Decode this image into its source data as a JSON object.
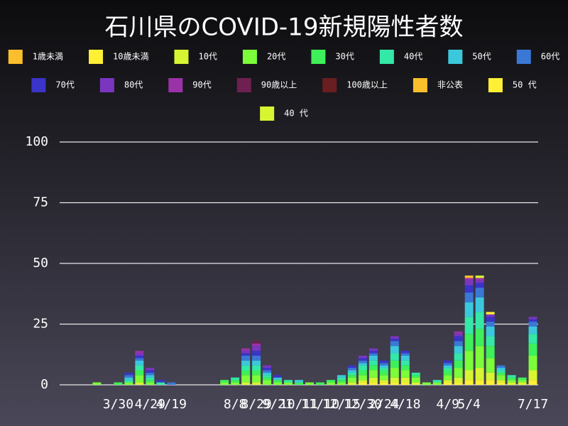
{
  "chart_data": {
    "type": "stacked_bar",
    "title": "石川県のCOVID-19新規陽性者数",
    "categories": [
      null,
      null,
      null,
      null,
      null,
      "3/30",
      null,
      null,
      "4/29",
      null,
      "4/19",
      null,
      null,
      null,
      null,
      null,
      "8/8",
      null,
      "8/29",
      null,
      "9/21",
      null,
      "10/11",
      null,
      "11/10",
      null,
      "12/15",
      null,
      "12/30",
      null,
      "2/24",
      null,
      "4/18",
      null,
      null,
      null,
      "4/9",
      null,
      "5/4",
      null,
      null,
      null,
      null,
      null,
      "7/17"
    ],
    "ylim": [
      0,
      100
    ],
    "yticks": [
      0,
      25,
      50,
      75,
      100
    ],
    "grid": true,
    "series": [
      {
        "name": "1歳未満",
        "color": "#fbbf2d",
        "values": [
          0,
          0,
          0,
          0,
          0,
          0,
          0,
          0,
          0,
          0,
          0,
          0,
          0,
          0,
          0,
          0,
          0,
          0,
          0,
          0,
          0,
          0,
          0,
          0,
          0,
          0,
          0,
          0,
          0,
          0,
          0,
          0,
          0,
          0,
          0,
          0,
          0,
          0,
          0,
          0,
          0,
          0,
          0,
          0,
          0
        ]
      },
      {
        "name": "10歳未満",
        "color": "#fff036",
        "values": [
          0,
          0,
          0,
          0,
          0,
          0,
          0,
          0,
          0,
          0,
          0,
          0,
          0,
          0,
          0,
          0,
          0,
          0,
          0,
          0,
          0,
          0,
          0,
          0,
          0,
          0,
          0,
          0,
          1,
          1,
          1,
          1,
          1,
          0,
          0,
          0,
          1,
          1,
          2,
          2,
          2,
          1,
          0,
          0,
          2
        ]
      },
      {
        "name": "10代",
        "color": "#d8f531",
        "values": [
          0,
          0,
          0,
          0,
          0,
          0,
          0,
          1,
          0,
          0,
          0,
          0,
          0,
          0,
          0,
          0,
          0,
          1,
          1,
          0,
          0,
          0,
          0,
          0,
          0,
          0,
          0,
          1,
          1,
          2,
          1,
          2,
          2,
          1,
          0,
          0,
          1,
          2,
          4,
          5,
          3,
          1,
          1,
          1,
          4
        ]
      },
      {
        "name": "20代",
        "color": "#7dfc3a",
        "values": [
          0,
          0,
          0,
          1,
          0,
          0,
          1,
          3,
          1,
          0,
          0,
          0,
          0,
          0,
          0,
          1,
          1,
          3,
          3,
          2,
          1,
          1,
          0,
          1,
          0,
          1,
          1,
          2,
          2,
          3,
          2,
          4,
          3,
          2,
          1,
          1,
          2,
          4,
          8,
          9,
          6,
          2,
          1,
          1,
          6
        ]
      },
      {
        "name": "30代",
        "color": "#3ef05a",
        "values": [
          0,
          0,
          0,
          0,
          0,
          1,
          0,
          2,
          1,
          0,
          0,
          0,
          0,
          0,
          0,
          1,
          1,
          2,
          2,
          1,
          1,
          0,
          1,
          0,
          1,
          1,
          1,
          1,
          2,
          2,
          2,
          3,
          2,
          1,
          0,
          0,
          2,
          3,
          7,
          7,
          5,
          1,
          1,
          1,
          5
        ]
      },
      {
        "name": "40代",
        "color": "#34e8a8",
        "values": [
          0,
          0,
          0,
          0,
          0,
          0,
          1,
          2,
          1,
          1,
          0,
          0,
          0,
          0,
          0,
          0,
          1,
          2,
          2,
          1,
          0,
          1,
          0,
          0,
          0,
          0,
          1,
          1,
          2,
          2,
          1,
          3,
          2,
          1,
          0,
          1,
          1,
          3,
          7,
          7,
          4,
          1,
          1,
          0,
          4
        ]
      },
      {
        "name": "50代",
        "color": "#3cc8dc",
        "values": [
          0,
          0,
          0,
          0,
          0,
          0,
          1,
          2,
          1,
          0,
          0,
          0,
          0,
          0,
          0,
          0,
          0,
          2,
          2,
          1,
          1,
          0,
          1,
          0,
          0,
          0,
          1,
          1,
          1,
          2,
          1,
          3,
          2,
          0,
          0,
          0,
          1,
          3,
          6,
          6,
          4,
          1,
          0,
          0,
          3
        ]
      },
      {
        "name": "60代",
        "color": "#3a78d6",
        "values": [
          0,
          0,
          0,
          0,
          0,
          0,
          1,
          1,
          1,
          0,
          1,
          0,
          0,
          0,
          0,
          0,
          0,
          2,
          2,
          1,
          0,
          0,
          0,
          0,
          0,
          0,
          0,
          1,
          1,
          1,
          1,
          2,
          1,
          0,
          0,
          0,
          1,
          2,
          4,
          4,
          2,
          1,
          0,
          0,
          2
        ]
      },
      {
        "name": "70代",
        "color": "#3a34c8",
        "values": [
          0,
          0,
          0,
          0,
          0,
          0,
          1,
          1,
          1,
          1,
          0,
          0,
          0,
          0,
          0,
          0,
          0,
          1,
          2,
          1,
          1,
          0,
          0,
          0,
          0,
          0,
          0,
          1,
          1,
          1,
          1,
          1,
          1,
          0,
          0,
          0,
          1,
          2,
          3,
          2,
          2,
          0,
          0,
          0,
          1
        ]
      },
      {
        "name": "80代",
        "color": "#7a36c0",
        "values": [
          0,
          0,
          0,
          0,
          0,
          0,
          0,
          1,
          1,
          0,
          0,
          0,
          0,
          0,
          0,
          0,
          0,
          1,
          2,
          1,
          0,
          0,
          0,
          0,
          0,
          0,
          0,
          0,
          1,
          1,
          0,
          1,
          0,
          0,
          0,
          0,
          0,
          1,
          2,
          1,
          1,
          0,
          0,
          0,
          1
        ]
      },
      {
        "name": "90代",
        "color": "#9a32a8",
        "values": [
          0,
          0,
          0,
          0,
          0,
          0,
          0,
          1,
          0,
          0,
          0,
          0,
          0,
          0,
          0,
          0,
          0,
          1,
          1,
          0,
          0,
          0,
          0,
          0,
          0,
          0,
          0,
          0,
          0,
          0,
          0,
          0,
          0,
          0,
          0,
          0,
          0,
          1,
          1,
          1,
          0,
          0,
          0,
          0,
          0
        ]
      },
      {
        "name": "90歳以上",
        "color": "#6e2050",
        "values": [
          0,
          0,
          0,
          0,
          0,
          0,
          0,
          0,
          0,
          0,
          0,
          0,
          0,
          0,
          0,
          0,
          0,
          0,
          1,
          0,
          0,
          0,
          0,
          0,
          0,
          0,
          0,
          0,
          0,
          0,
          0,
          0,
          0,
          0,
          0,
          0,
          0,
          0,
          0,
          0,
          0,
          0,
          0,
          0,
          0
        ]
      },
      {
        "name": "100歳以上",
        "color": "#6a1e20",
        "values": [
          0,
          0,
          0,
          0,
          0,
          0,
          0,
          0,
          0,
          0,
          0,
          0,
          0,
          0,
          0,
          0,
          0,
          0,
          0,
          0,
          0,
          0,
          0,
          0,
          0,
          0,
          0,
          0,
          0,
          0,
          0,
          0,
          0,
          0,
          0,
          0,
          0,
          0,
          0,
          0,
          0,
          0,
          0,
          0,
          0
        ]
      },
      {
        "name": "非公表",
        "color": "#fbbf2d",
        "values": [
          0,
          0,
          0,
          0,
          0,
          0,
          0,
          0,
          0,
          0,
          0,
          0,
          0,
          0,
          0,
          0,
          0,
          0,
          0,
          0,
          0,
          0,
          0,
          0,
          0,
          0,
          0,
          0,
          0,
          0,
          0,
          0,
          0,
          0,
          0,
          0,
          0,
          0,
          1,
          0,
          0,
          0,
          0,
          0,
          0
        ]
      },
      {
        "name": "50 代",
        "color": "#fff036",
        "values": [
          0,
          0,
          0,
          0,
          0,
          0,
          0,
          0,
          0,
          0,
          0,
          0,
          0,
          0,
          0,
          0,
          0,
          0,
          0,
          0,
          0,
          0,
          0,
          0,
          0,
          0,
          0,
          0,
          0,
          0,
          0,
          0,
          0,
          0,
          0,
          0,
          0,
          0,
          0,
          0,
          1,
          0,
          0,
          0,
          0
        ]
      },
      {
        "name": "40 代",
        "color": "#d8f531",
        "values": [
          0,
          0,
          0,
          0,
          0,
          0,
          0,
          0,
          0,
          0,
          0,
          0,
          0,
          0,
          0,
          0,
          0,
          0,
          0,
          0,
          0,
          0,
          0,
          0,
          0,
          0,
          0,
          0,
          0,
          0,
          0,
          0,
          0,
          0,
          0,
          0,
          0,
          0,
          0,
          1,
          0,
          0,
          0,
          0,
          0
        ]
      }
    ]
  }
}
